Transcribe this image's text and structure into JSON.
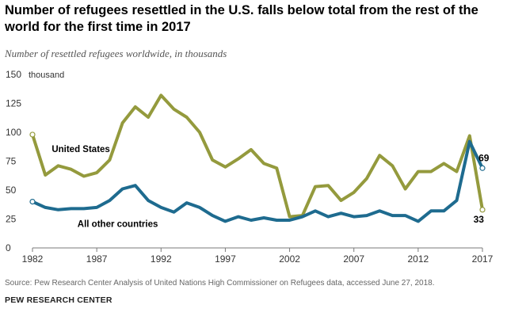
{
  "header": {
    "title": "Number of refugees resettled in the U.S. falls below total from the rest of the world for the first time in 2017",
    "subtitle": "Number of resettled refugees worldwide, in thousands"
  },
  "footer": {
    "source": "Source: Pew Research Center Analysis of United Nations High Commissioner on Refugees data, accessed June 27, 2018.",
    "credit": "PEW RESEARCH CENTER"
  },
  "chart_data": {
    "type": "line",
    "title": "Number of refugees resettled in the U.S. falls below total from the rest of the world for the first time in 2017",
    "subtitle": "Number of resettled refugees worldwide, in thousands",
    "xlabel": "",
    "ylabel": "",
    "y_unit_label": "thousand",
    "xlim": [
      1982,
      2017
    ],
    "ylim": [
      0,
      150
    ],
    "x_ticks": [
      1982,
      1987,
      1992,
      1997,
      2002,
      2007,
      2012,
      2017
    ],
    "y_ticks": [
      0,
      25,
      50,
      75,
      100,
      125,
      150
    ],
    "grid": false,
    "x": [
      1982,
      1983,
      1984,
      1985,
      1986,
      1987,
      1988,
      1989,
      1990,
      1991,
      1992,
      1993,
      1994,
      1995,
      1996,
      1997,
      1998,
      1999,
      2000,
      2001,
      2002,
      2003,
      2004,
      2005,
      2006,
      2007,
      2008,
      2009,
      2010,
      2011,
      2012,
      2013,
      2014,
      2015,
      2016,
      2017
    ],
    "series": [
      {
        "name": "United States",
        "color": "#949a3d",
        "values": [
          98,
          63,
          71,
          68,
          62,
          65,
          76,
          108,
          122,
          113,
          132,
          120,
          113,
          100,
          76,
          70,
          77,
          85,
          73,
          69,
          27,
          28,
          53,
          54,
          41,
          48,
          60,
          80,
          71,
          51,
          66,
          66,
          73,
          66,
          97,
          33
        ]
      },
      {
        "name": "All other countries",
        "color": "#1e6b8f",
        "values": [
          40,
          35,
          33,
          34,
          34,
          35,
          41,
          51,
          54,
          41,
          35,
          31,
          39,
          35,
          28,
          23,
          27,
          24,
          26,
          24,
          24,
          27,
          32,
          27,
          30,
          27,
          28,
          32,
          28,
          28,
          23,
          32,
          32,
          41,
          92,
          69
        ]
      }
    ],
    "end_labels": {
      "United States": "33",
      "All other countries": "69"
    }
  }
}
